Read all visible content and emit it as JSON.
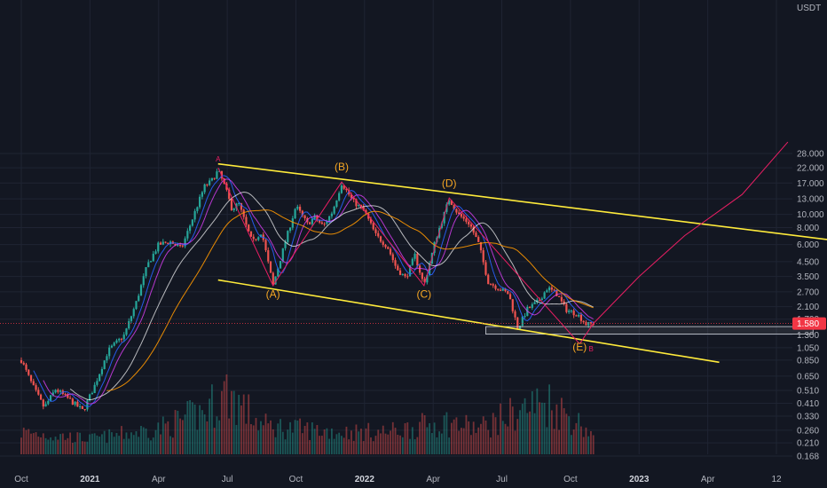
{
  "chart_data": {
    "type": "candlestick",
    "currency_label": "USDT",
    "price_scale": "log",
    "ylim": [
      0.16,
      32
    ],
    "y_ticks": [
      28.0,
      22.0,
      17.0,
      13.0,
      10.0,
      8.0,
      6.0,
      4.5,
      3.5,
      2.7,
      2.1,
      1.7,
      1.3,
      1.05,
      0.85,
      0.65,
      0.51,
      0.41,
      0.33,
      0.26,
      0.21,
      0.168
    ],
    "y_tick_labels": [
      "28.000",
      "22.000",
      "17.000",
      "13.000",
      "10.000",
      "8.000",
      "6.000",
      "4.500",
      "3.500",
      "2.700",
      "2.100",
      "1.700",
      "1.300",
      "1.050",
      "0.850",
      "0.650",
      "0.510",
      "0.410",
      "0.330",
      "0.260",
      "0.210",
      "0.168"
    ],
    "x_ticks": [
      {
        "label": "Oct",
        "year": false
      },
      {
        "label": "2021",
        "year": true
      },
      {
        "label": "Apr",
        "year": false
      },
      {
        "label": "Jul",
        "year": false
      },
      {
        "label": "Oct",
        "year": false
      },
      {
        "label": "2022",
        "year": true
      },
      {
        "label": "Apr",
        "year": false
      },
      {
        "label": "Jul",
        "year": false
      },
      {
        "label": "Oct",
        "year": false
      },
      {
        "label": "2023",
        "year": true
      },
      {
        "label": "Apr",
        "year": false
      },
      {
        "label": "12",
        "year": false
      }
    ],
    "x_tick_months": [
      0,
      3,
      6,
      9,
      12,
      15,
      18,
      21,
      24,
      27,
      30,
      33
    ],
    "current_price": 1.58,
    "current_price_label": "1.580",
    "price_path": [
      [
        0,
        0.85
      ],
      [
        0.5,
        0.55
      ],
      [
        1.0,
        0.38
      ],
      [
        1.5,
        0.52
      ],
      [
        2.0,
        0.45
      ],
      [
        2.7,
        0.36
      ],
      [
        3.2,
        0.55
      ],
      [
        3.8,
        1.0
      ],
      [
        4.5,
        1.3
      ],
      [
        5.0,
        2.2
      ],
      [
        5.5,
        4.2
      ],
      [
        6.0,
        6.0
      ],
      [
        6.5,
        6.3
      ],
      [
        7.0,
        5.6
      ],
      [
        7.5,
        9.5
      ],
      [
        8.0,
        16.0
      ],
      [
        8.3,
        17.5
      ],
      [
        8.6,
        21.0
      ],
      [
        8.9,
        16.0
      ],
      [
        9.2,
        11.0
      ],
      [
        9.5,
        12.0
      ],
      [
        9.8,
        8.5
      ],
      [
        10.1,
        6.2
      ],
      [
        10.5,
        7.5
      ],
      [
        11.0,
        3.0
      ],
      [
        11.5,
        6.0
      ],
      [
        12.0,
        11.5
      ],
      [
        12.5,
        8.5
      ],
      [
        12.8,
        9.5
      ],
      [
        13.2,
        8.2
      ],
      [
        13.6,
        10.5
      ],
      [
        14.0,
        17.0
      ],
      [
        14.5,
        12.5
      ],
      [
        15.0,
        10.5
      ],
      [
        15.5,
        7.0
      ],
      [
        16.0,
        5.8
      ],
      [
        16.4,
        4.0
      ],
      [
        16.8,
        3.4
      ],
      [
        17.2,
        5.0
      ],
      [
        17.6,
        3.0
      ],
      [
        18.1,
        6.5
      ],
      [
        18.7,
        13.0
      ],
      [
        19.1,
        10.0
      ],
      [
        19.6,
        8.5
      ],
      [
        20.0,
        6.0
      ],
      [
        20.4,
        3.2
      ],
      [
        20.8,
        2.9
      ],
      [
        21.3,
        2.6
      ],
      [
        21.7,
        1.45
      ],
      [
        22.1,
        2.0
      ],
      [
        22.6,
        2.3
      ],
      [
        23.0,
        2.9
      ],
      [
        23.4,
        2.6
      ],
      [
        23.8,
        2.0
      ],
      [
        24.3,
        1.85
      ],
      [
        24.7,
        1.55
      ],
      [
        25.0,
        1.58
      ]
    ],
    "volume_profile": [
      [
        0,
        0.25
      ],
      [
        3,
        0.15
      ],
      [
        6,
        0.3
      ],
      [
        8,
        0.55
      ],
      [
        9,
        0.85
      ],
      [
        10.5,
        0.35
      ],
      [
        12,
        0.3
      ],
      [
        14,
        0.25
      ],
      [
        16,
        0.25
      ],
      [
        18.5,
        0.4
      ],
      [
        20,
        0.3
      ],
      [
        22,
        0.6
      ],
      [
        23,
        0.7
      ],
      [
        24.5,
        0.35
      ],
      [
        25,
        0.2
      ]
    ],
    "wave_labels": [
      {
        "label": "(A)",
        "month": 11.0,
        "price": 2.45
      },
      {
        "label": "(B)",
        "month": 14.0,
        "price": 21.0
      },
      {
        "label": "(C)",
        "month": 17.6,
        "price": 2.45
      },
      {
        "label": "(D)",
        "month": 18.7,
        "price": 16.0
      },
      {
        "label": "(E)",
        "month": 24.4,
        "price": 1.0
      }
    ],
    "small_labels": [
      {
        "label": "A",
        "month": 8.6,
        "price": 24.5
      },
      {
        "label": "B",
        "month": 24.9,
        "price": 0.99
      }
    ],
    "upper_channel": [
      [
        8.6,
        23.5
      ],
      [
        36,
        6.3
      ]
    ],
    "lower_channel": [
      [
        8.6,
        3.3
      ],
      [
        30.5,
        0.82
      ]
    ],
    "zigzag": [
      [
        8.6,
        22.0
      ],
      [
        11.0,
        3.0
      ],
      [
        14.0,
        17.3
      ],
      [
        17.6,
        3.0
      ],
      [
        18.7,
        13.2
      ],
      [
        24.4,
        1.12
      ]
    ],
    "projection": [
      [
        24.4,
        1.12
      ],
      [
        25.0,
        1.58
      ],
      [
        27.0,
        3.5
      ],
      [
        29.0,
        7.0
      ],
      [
        31.5,
        14.0
      ],
      [
        33.5,
        34.0
      ]
    ],
    "support_zone": {
      "month_start": 20.3,
      "month_end": 34.6,
      "price_low": 1.32,
      "price_high": 1.5
    },
    "colors": {
      "background": "#131722",
      "grid": "#1f2433",
      "channel": "#ffeb3b",
      "zigzag": "#e91e63",
      "wave_label": "#f5a623",
      "up_candle": "#26a69a",
      "down_candle": "#ef5350",
      "price_badge": "#f23645",
      "axis_text": "#b2b5be"
    }
  }
}
